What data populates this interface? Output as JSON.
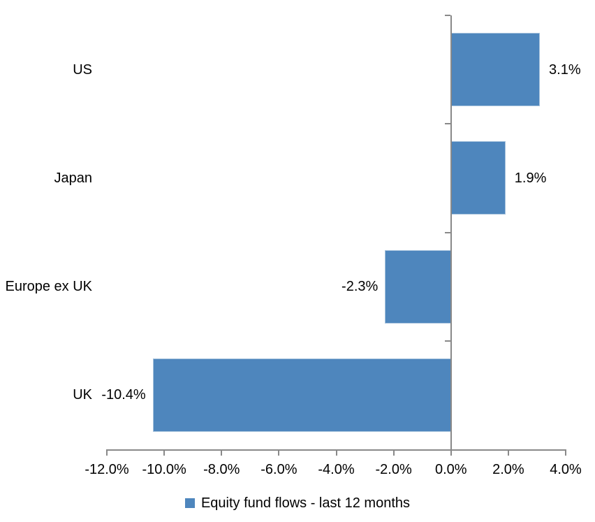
{
  "chart_data": {
    "type": "bar",
    "orientation": "horizontal",
    "title": "",
    "categories": [
      "US",
      "Japan",
      "Europe ex UK",
      "UK"
    ],
    "values": [
      3.1,
      1.9,
      -2.3,
      -10.4
    ],
    "data_labels": [
      "3.1%",
      "1.9%",
      "-2.3%",
      "-10.4%"
    ],
    "x_tick_values": [
      -12,
      -10,
      -8,
      -6,
      -4,
      -2,
      0,
      2,
      4
    ],
    "x_tick_labels": [
      "-12.0%",
      "-10.0%",
      "-8.0%",
      "-6.0%",
      "-4.0%",
      "-2.0%",
      "0.0%",
      "2.0%",
      "4.0%"
    ],
    "xlim": [
      -12,
      4
    ],
    "grid": false,
    "legend_position": "bottom",
    "legend": [
      {
        "label": "Equity fund flows - last 12 months",
        "color": "#4e86bd"
      }
    ]
  },
  "colors": {
    "bar_fill": "#4e86bd",
    "bar_edge": "#a6c2dc",
    "axis_line": "#898989",
    "text": "#000000",
    "background": "#ffffff"
  }
}
